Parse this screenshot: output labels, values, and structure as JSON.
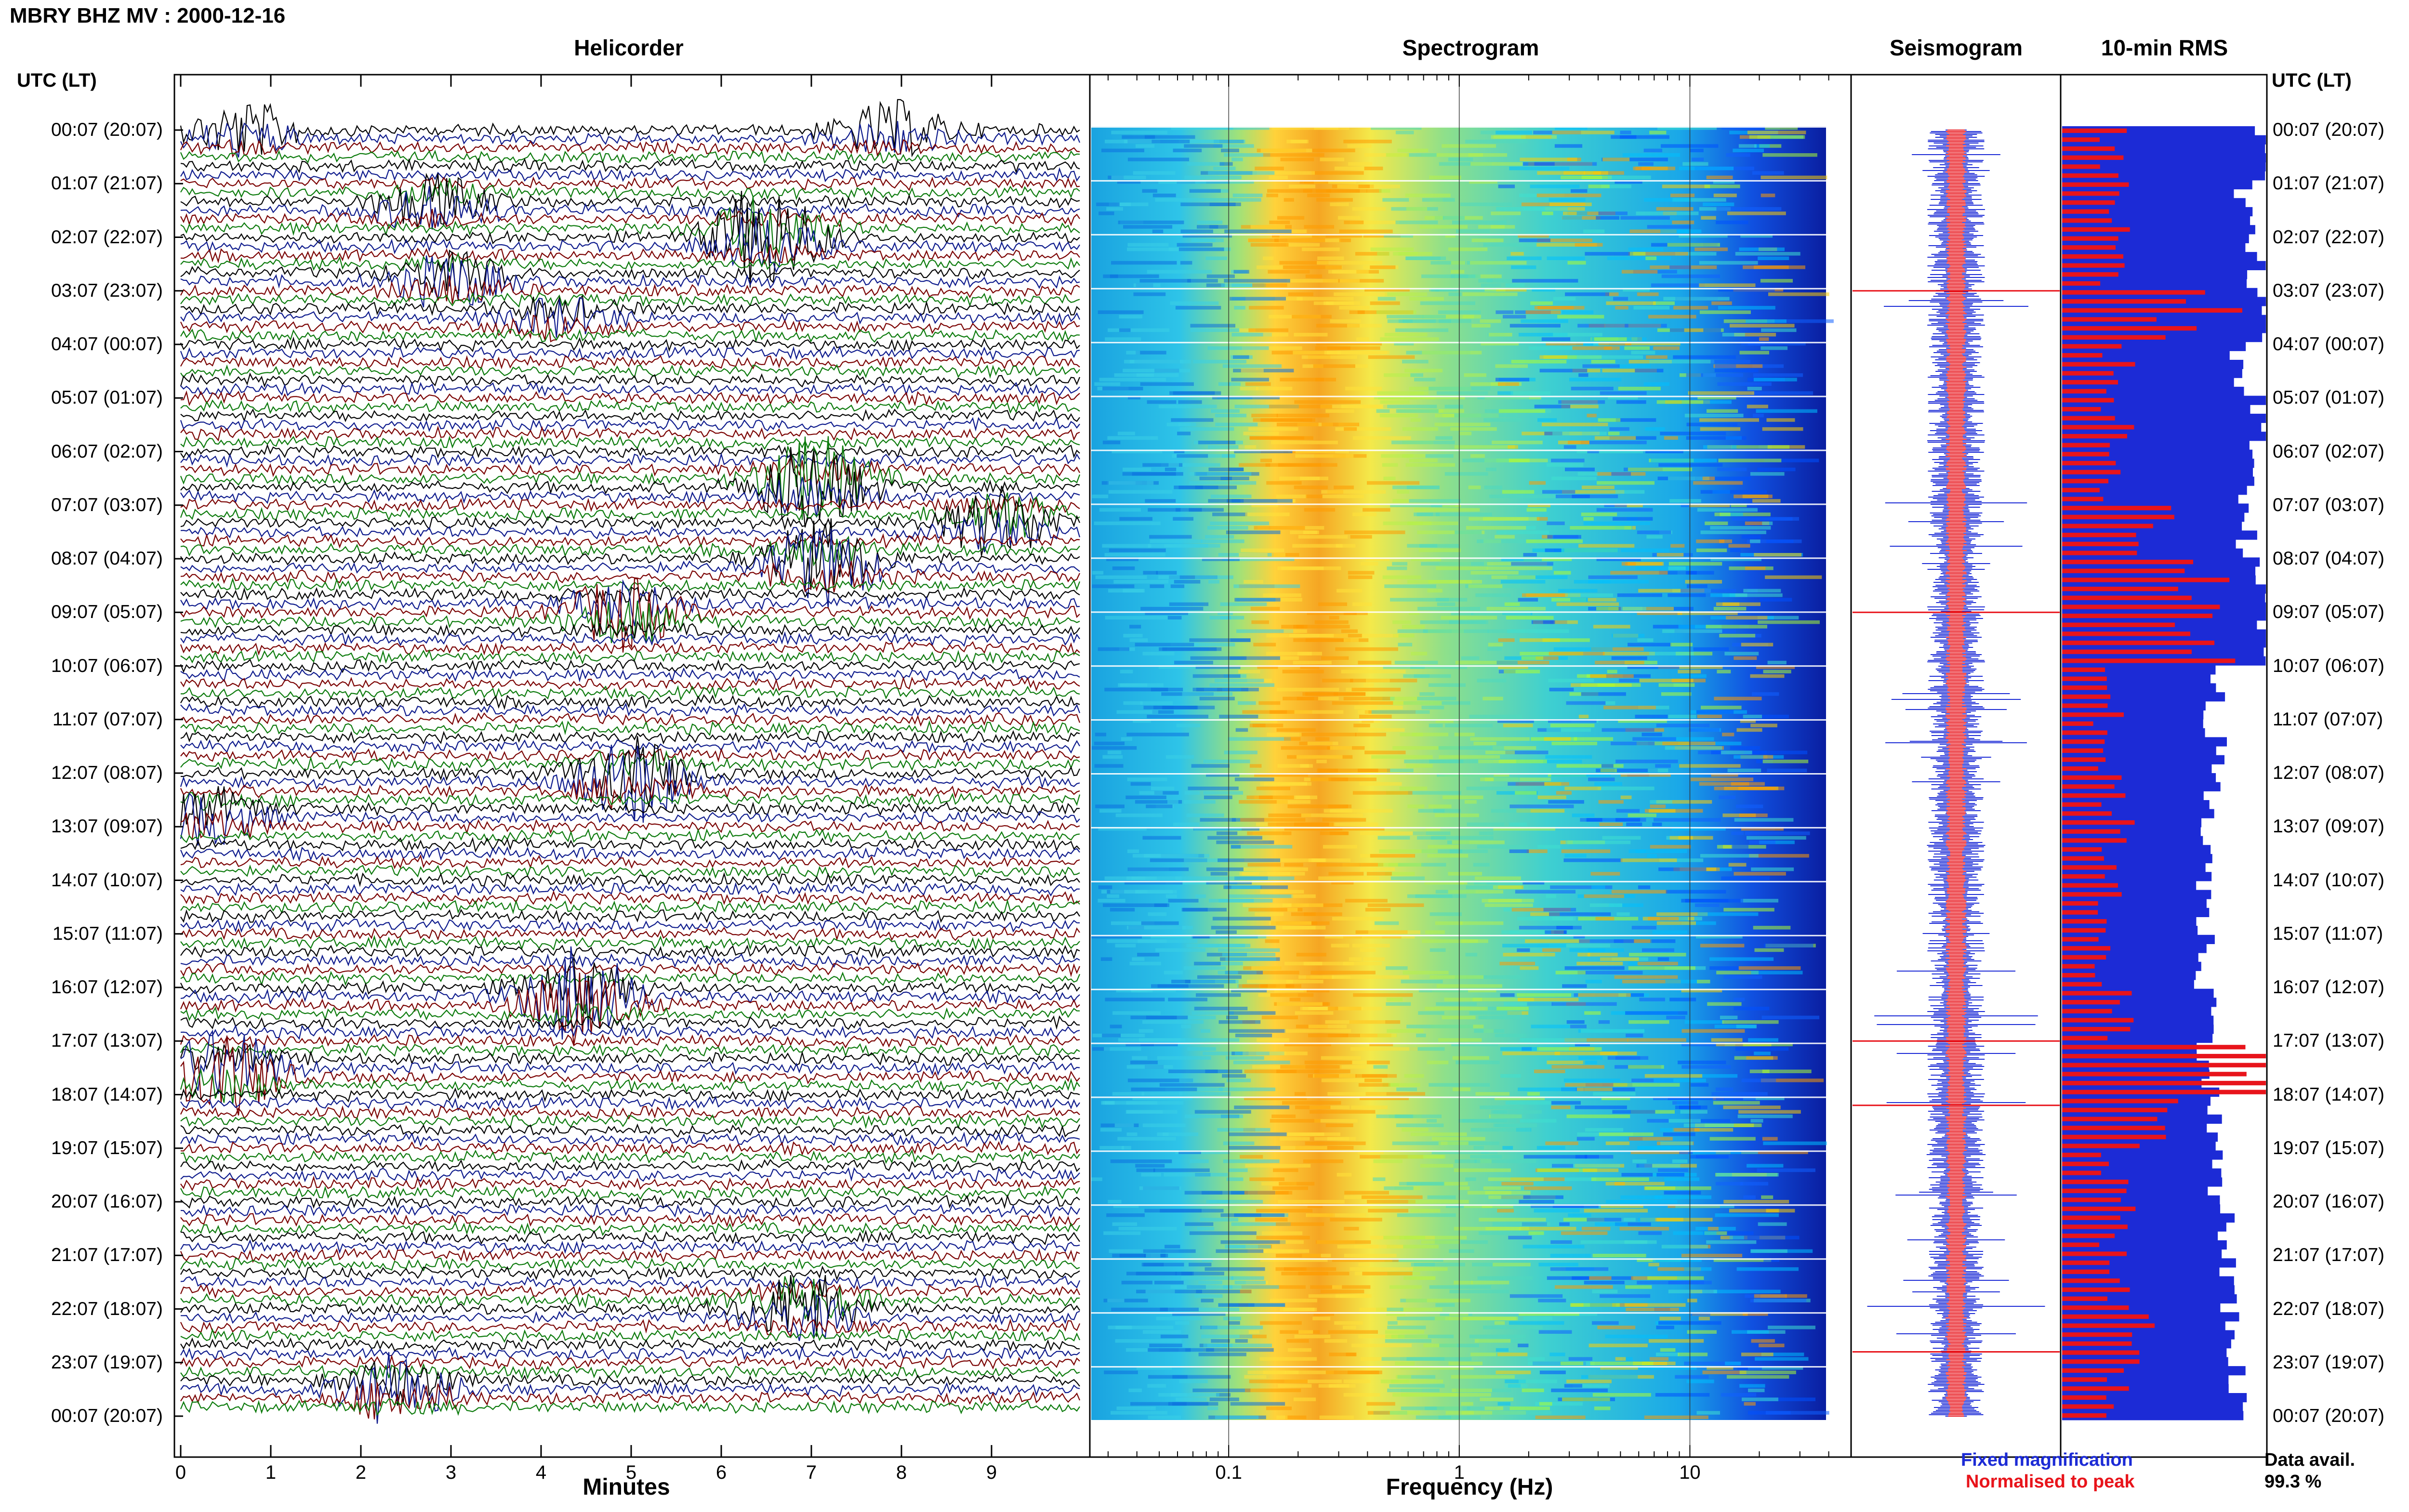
{
  "title": "MBRY BHZ MV : 2000-12-16",
  "panels": {
    "helicorder": "Helicorder",
    "spectrogram": "Spectrogram",
    "seismogram": "Seismogram",
    "rms": "10-min RMS"
  },
  "axis_labels": {
    "helicorder_x": "Minutes",
    "spectrogram_x": "Frequency (Hz)"
  },
  "side_headers": {
    "left": "UTC (LT)",
    "right": "UTC (LT)"
  },
  "legend": {
    "fixed": "Fixed magnification",
    "normalised": "Normalised to peak",
    "fixed_color": "#1c2bd6",
    "normalised_color": "#e8141b"
  },
  "data_availability": {
    "label": "Data avail.",
    "value": "99.3 %"
  },
  "colors": {
    "trace_cycle": [
      "#000000",
      "#0d1a8c",
      "#7a0000",
      "#0b7a0b"
    ],
    "rms_fixed": "#1c2bd6",
    "rms_normalised": "#e8141b"
  },
  "chart_data": {
    "type": "heatmap",
    "time_labels": [
      "00:07 (20:07)",
      "01:07 (21:07)",
      "02:07 (22:07)",
      "03:07 (23:07)",
      "04:07 (00:07)",
      "05:07 (01:07)",
      "06:07 (02:07)",
      "07:07 (03:07)",
      "08:07 (04:07)",
      "09:07 (05:07)",
      "10:07 (06:07)",
      "11:07 (07:07)",
      "12:07 (08:07)",
      "13:07 (09:07)",
      "14:07 (10:07)",
      "15:07 (11:07)",
      "16:07 (12:07)",
      "17:07 (13:07)",
      "18:07 (14:07)",
      "19:07 (15:07)",
      "20:07 (16:07)",
      "21:07 (17:07)",
      "22:07 (18:07)",
      "23:07 (19:07)",
      "00:07 (20:07)"
    ],
    "helicorder": {
      "x_ticks": [
        "0",
        "1",
        "2",
        "3",
        "4",
        "5",
        "6",
        "7",
        "8",
        "9"
      ],
      "xlim": [
        0,
        10
      ],
      "lines_per_hour": 6,
      "events": [
        {
          "hour": 0.0,
          "minute": 0.7,
          "amplitude": 3
        },
        {
          "hour": 0.0,
          "minute": 7.9,
          "amplitude": 3
        },
        {
          "hour": 1.4,
          "minute": 2.8,
          "amplitude": 3
        },
        {
          "hour": 2.0,
          "minute": 6.5,
          "amplitude": 6
        },
        {
          "hour": 2.8,
          "minute": 3.0,
          "amplitude": 3
        },
        {
          "hour": 3.5,
          "minute": 4.2,
          "amplitude": 2
        },
        {
          "hour": 6.6,
          "minute": 7.0,
          "amplitude": 6
        },
        {
          "hour": 7.3,
          "minute": 9.1,
          "amplitude": 4
        },
        {
          "hour": 8.1,
          "minute": 7.1,
          "amplitude": 5
        },
        {
          "hour": 9.0,
          "minute": 4.9,
          "amplitude": 4
        },
        {
          "hour": 12.1,
          "minute": 5.0,
          "amplitude": 5
        },
        {
          "hour": 12.8,
          "minute": 0.3,
          "amplitude": 3
        },
        {
          "hour": 16.2,
          "minute": 4.4,
          "amplitude": 6
        },
        {
          "hour": 17.6,
          "minute": 0.5,
          "amplitude": 5
        },
        {
          "hour": 22.0,
          "minute": 6.9,
          "amplitude": 4
        },
        {
          "hour": 23.5,
          "minute": 2.4,
          "amplitude": 4
        }
      ]
    },
    "spectrogram": {
      "x_ticks": [
        "0.1",
        "1",
        "10"
      ],
      "x_scale": "log",
      "xlim": [
        0.025,
        50
      ],
      "colormap": [
        "#00007f",
        "#0000ff",
        "#00bfff",
        "#40e0d0",
        "#adff2f",
        "#ffff00",
        "#ffa500",
        "#ff0000"
      ],
      "dominant_band_hz": [
        0.15,
        0.5
      ]
    },
    "seismogram": {
      "series": [
        "Fixed magnification",
        "Normalised to peak"
      ]
    },
    "rms": {
      "series": [
        {
          "name": "Fixed magnification",
          "values": [
            1.0,
            0.9,
            0.95,
            1.0,
            0.85,
            0.95,
            0.9,
            0.9,
            1.0,
            1.0,
            0.75,
            0.75,
            0.72,
            0.72,
            0.7,
            0.7,
            0.72,
            0.72,
            0.75,
            0.75,
            0.8,
            0.8,
            0.85,
            0.85,
            0.9
          ]
        },
        {
          "name": "Normalised to peak",
          "values": [
            0.3,
            0.3,
            0.3,
            0.75,
            0.3,
            0.3,
            0.3,
            0.5,
            0.7,
            0.8,
            0.3,
            0.25,
            0.3,
            0.3,
            0.25,
            0.25,
            0.3,
            1.0,
            0.6,
            0.3,
            0.3,
            0.3,
            0.4,
            0.3,
            0.3
          ]
        }
      ]
    }
  }
}
